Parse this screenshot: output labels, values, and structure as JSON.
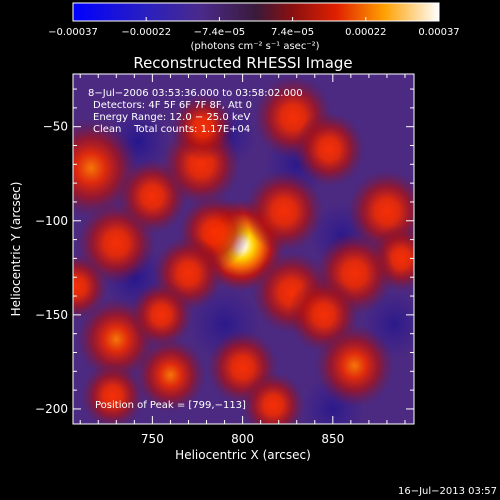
{
  "chart_data": {
    "type": "heatmap",
    "title": "Reconstructed RHESSI Image",
    "xlabel": "Heliocentric X (arcsec)",
    "ylabel": "Heliocentric Y (arcsec)",
    "xlim": [
      706,
      895
    ],
    "ylim": [
      -208,
      -22
    ],
    "x_ticks": [
      750,
      800,
      850
    ],
    "x_tick_labels": [
      "750",
      "800",
      "850"
    ],
    "y_ticks": [
      -50,
      -100,
      -150,
      -200
    ],
    "y_tick_labels": [
      "−50",
      "−100",
      "−150",
      "−200"
    ],
    "colorbar": {
      "range": [
        -0.00037,
        0.00037
      ],
      "tick_labels": [
        "−0.00037",
        "−0.00022",
        "−7.4e−05",
        "7.4e−05",
        "0.00022",
        "0.00037"
      ],
      "unit_label": "(photons cm⁻² s⁻¹ asec⁻²)"
    },
    "annotations": [
      "8−Jul−2006 03:53:36.000 to 03:58:02.000",
      "Detectors: 4F 5F 6F 7F 8F, Att 0",
      "Energy Range: 12.0 − 25.0 keV",
      "Clean    Total counts: 1.17E+04",
      "Position of Peak = [799,−113]"
    ],
    "peak_position": [
      799,
      -113
    ],
    "blobs": [
      {
        "x": 799,
        "y": -113,
        "sigma": 11,
        "amp": 1.0
      },
      {
        "x": 784,
        "y": -106,
        "sigma": 9,
        "amp": 0.45
      },
      {
        "x": 716,
        "y": -72,
        "sigma": 12,
        "amp": 0.55
      },
      {
        "x": 730,
        "y": -112,
        "sigma": 10,
        "amp": 0.5
      },
      {
        "x": 750,
        "y": -87,
        "sigma": 9,
        "amp": 0.42
      },
      {
        "x": 777,
        "y": -70,
        "sigma": 10,
        "amp": 0.4
      },
      {
        "x": 770,
        "y": -128,
        "sigma": 9,
        "amp": 0.4
      },
      {
        "x": 778,
        "y": -50,
        "sigma": 8,
        "amp": 0.35
      },
      {
        "x": 823,
        "y": -95,
        "sigma": 10,
        "amp": 0.45
      },
      {
        "x": 828,
        "y": -45,
        "sigma": 10,
        "amp": 0.5
      },
      {
        "x": 848,
        "y": -62,
        "sigma": 9,
        "amp": 0.4
      },
      {
        "x": 880,
        "y": -95,
        "sigma": 10,
        "amp": 0.5
      },
      {
        "x": 888,
        "y": -120,
        "sigma": 8,
        "amp": 0.4
      },
      {
        "x": 862,
        "y": -128,
        "sigma": 10,
        "amp": 0.4
      },
      {
        "x": 827,
        "y": -138,
        "sigma": 10,
        "amp": 0.45
      },
      {
        "x": 845,
        "y": -150,
        "sigma": 9,
        "amp": 0.4
      },
      {
        "x": 862,
        "y": -177,
        "sigma": 10,
        "amp": 0.55
      },
      {
        "x": 730,
        "y": -163,
        "sigma": 10,
        "amp": 0.6
      },
      {
        "x": 760,
        "y": -182,
        "sigma": 9,
        "amp": 0.55
      },
      {
        "x": 728,
        "y": -193,
        "sigma": 8,
        "amp": 0.35
      },
      {
        "x": 800,
        "y": -178,
        "sigma": 9,
        "amp": 0.35
      },
      {
        "x": 817,
        "y": -198,
        "sigma": 8,
        "amp": 0.3
      },
      {
        "x": 708,
        "y": -135,
        "sigma": 8,
        "amp": 0.35
      },
      {
        "x": 755,
        "y": -150,
        "sigma": 8,
        "amp": 0.3
      }
    ],
    "dark_spots": [
      {
        "x": 742,
        "y": -58,
        "sigma": 8,
        "amp": 0.35
      },
      {
        "x": 792,
        "y": -55,
        "sigma": 7,
        "amp": 0.3
      },
      {
        "x": 830,
        "y": -70,
        "sigma": 8,
        "amp": 0.3
      },
      {
        "x": 855,
        "y": -108,
        "sigma": 8,
        "amp": 0.3
      },
      {
        "x": 740,
        "y": -130,
        "sigma": 8,
        "amp": 0.35
      },
      {
        "x": 790,
        "y": -155,
        "sigma": 9,
        "amp": 0.3
      },
      {
        "x": 884,
        "y": -155,
        "sigma": 8,
        "amp": 0.3
      },
      {
        "x": 850,
        "y": -200,
        "sigma": 8,
        "amp": 0.3
      }
    ]
  },
  "footer": {
    "timestamp": "16−Jul−2013 03:57"
  }
}
